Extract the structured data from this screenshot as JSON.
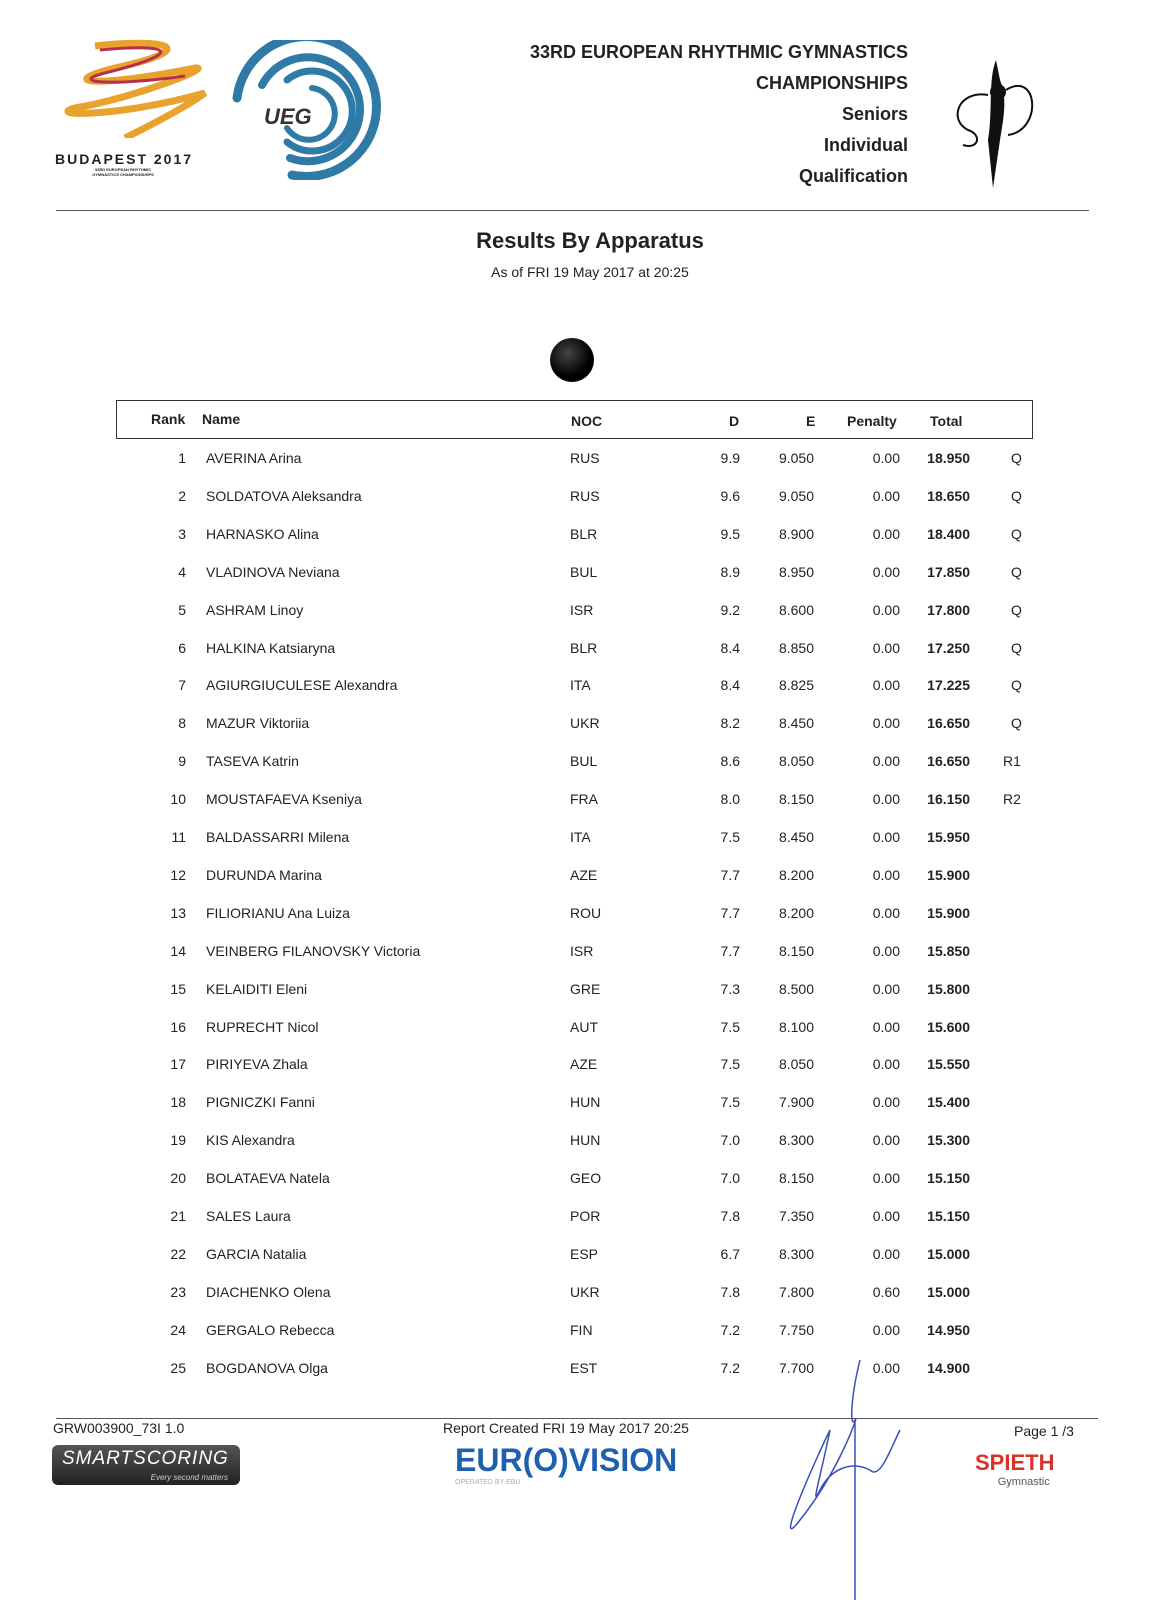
{
  "header": {
    "logo_left_text": "BUDAPEST 2017",
    "logo_left_sub": "33RD EUROPEAN RHYTHMIC GYMNASTICS CHAMPIONSHIPS",
    "logo_ueg": "UEG",
    "lines": [
      "33RD EUROPEAN RHYTHMIC GYMNASTICS",
      "CHAMPIONSHIPS",
      "Seniors",
      "Individual",
      "Qualification"
    ]
  },
  "title": "Results By Apparatus",
  "as_of": "As of FRI 19 May 2017 at 20:25",
  "apparatus_icon": "ball-icon",
  "table": {
    "headers": {
      "rank": "Rank",
      "name": "Name",
      "noc": "NOC",
      "d": "D",
      "e": "E",
      "penalty": "Penalty",
      "total": "Total"
    },
    "rows": [
      [
        "1",
        "AVERINA Arina",
        "RUS",
        "9.9",
        "9.050",
        "0.00",
        "18.950",
        "Q"
      ],
      [
        "2",
        "SOLDATOVA Aleksandra",
        "RUS",
        "9.6",
        "9.050",
        "0.00",
        "18.650",
        "Q"
      ],
      [
        "3",
        "HARNASKO Alina",
        "BLR",
        "9.5",
        "8.900",
        "0.00",
        "18.400",
        "Q"
      ],
      [
        "4",
        "VLADINOVA Neviana",
        "BUL",
        "8.9",
        "8.950",
        "0.00",
        "17.850",
        "Q"
      ],
      [
        "5",
        "ASHRAM Linoy",
        "ISR",
        "9.2",
        "8.600",
        "0.00",
        "17.800",
        "Q"
      ],
      [
        "6",
        "HALKINA Katsiaryna",
        "BLR",
        "8.4",
        "8.850",
        "0.00",
        "17.250",
        "Q"
      ],
      [
        "7",
        "AGIURGIUCULESE Alexandra",
        "ITA",
        "8.4",
        "8.825",
        "0.00",
        "17.225",
        "Q"
      ],
      [
        "8",
        "MAZUR Viktoriia",
        "UKR",
        "8.2",
        "8.450",
        "0.00",
        "16.650",
        "Q"
      ],
      [
        "9",
        "TASEVA Katrin",
        "BUL",
        "8.6",
        "8.050",
        "0.00",
        "16.650",
        "R1"
      ],
      [
        "10",
        "MOUSTAFAEVA Kseniya",
        "FRA",
        "8.0",
        "8.150",
        "0.00",
        "16.150",
        "R2"
      ],
      [
        "11",
        "BALDASSARRI Milena",
        "ITA",
        "7.5",
        "8.450",
        "0.00",
        "15.950",
        ""
      ],
      [
        "12",
        "DURUNDA Marina",
        "AZE",
        "7.7",
        "8.200",
        "0.00",
        "15.900",
        ""
      ],
      [
        "13",
        "FILIORIANU Ana Luiza",
        "ROU",
        "7.7",
        "8.200",
        "0.00",
        "15.900",
        ""
      ],
      [
        "14",
        "VEINBERG FILANOVSKY Victoria",
        "ISR",
        "7.7",
        "8.150",
        "0.00",
        "15.850",
        ""
      ],
      [
        "15",
        "KELAIDITI Eleni",
        "GRE",
        "7.3",
        "8.500",
        "0.00",
        "15.800",
        ""
      ],
      [
        "16",
        "RUPRECHT Nicol",
        "AUT",
        "7.5",
        "8.100",
        "0.00",
        "15.600",
        ""
      ],
      [
        "17",
        "PIRIYEVA Zhala",
        "AZE",
        "7.5",
        "8.050",
        "0.00",
        "15.550",
        ""
      ],
      [
        "18",
        "PIGNICZKI Fanni",
        "HUN",
        "7.5",
        "7.900",
        "0.00",
        "15.400",
        ""
      ],
      [
        "19",
        "KIS Alexandra",
        "HUN",
        "7.0",
        "8.300",
        "0.00",
        "15.300",
        ""
      ],
      [
        "20",
        "BOLATAEVA Natela",
        "GEO",
        "7.0",
        "8.150",
        "0.00",
        "15.150",
        ""
      ],
      [
        "21",
        "SALES Laura",
        "POR",
        "7.8",
        "7.350",
        "0.00",
        "15.150",
        ""
      ],
      [
        "22",
        "GARCIA Natalia",
        "ESP",
        "6.7",
        "8.300",
        "0.00",
        "15.000",
        ""
      ],
      [
        "23",
        "DIACHENKO Olena",
        "UKR",
        "7.8",
        "7.800",
        "0.60",
        "15.000",
        ""
      ],
      [
        "24",
        "GERGALO Rebecca",
        "FIN",
        "7.2",
        "7.750",
        "0.00",
        "14.950",
        ""
      ],
      [
        "25",
        "BOGDANOVA Olga",
        "EST",
        "7.2",
        "7.700",
        "0.00",
        "14.900",
        ""
      ]
    ]
  },
  "footer": {
    "code": "GRW003900_73I 1.0",
    "created": "Report Created FRI 19 May 2017 20:25",
    "page": "Page 1 /3",
    "smartscoring": "SMARTSCORING",
    "smartscoring_tag": "Every second matters",
    "eurovision": "EUR(O)VISION",
    "eurovision_sub": "OPERATED BY EBU",
    "spieth": "SPIETH",
    "spieth_sub": "Gymnastic"
  },
  "colors": {
    "ueg_blue": "#2f7aa6",
    "eurovision_blue": "#1e5fb0",
    "spieth_red": "#d8322a",
    "signature": "#3a4fb8"
  }
}
